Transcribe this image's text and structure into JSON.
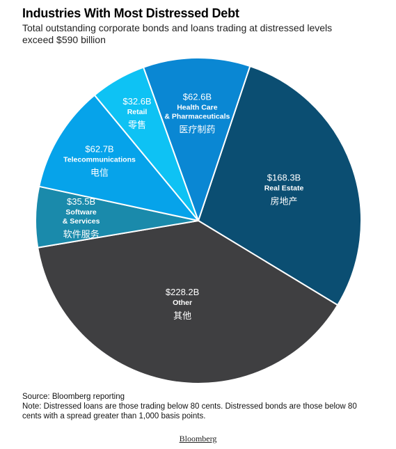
{
  "header": {
    "title": "Industries With Most Distressed Debt",
    "subtitle": "Total outstanding corporate bonds and loans trading at distressed levels exceed $590 billion"
  },
  "chart_data": {
    "type": "pie",
    "title": "Industries With Most Distressed Debt",
    "subtitle": "Total outstanding corporate bonds and loans trading at distressed levels exceed $590 billion",
    "unit": "USD billion",
    "slices": [
      {
        "label": "Real Estate",
        "label_zh": "房地产",
        "value": 168.3,
        "value_label": "$168.3B",
        "color": "#0b4e72",
        "text_color": "#ffffff"
      },
      {
        "label": "Other",
        "label_zh": "其他",
        "value": 228.2,
        "value_label": "$228.2B",
        "color": "#3f3f41",
        "text_color": "#ffffff"
      },
      {
        "label": "Software & Services",
        "label_zh": "软件服务",
        "value": 35.5,
        "value_label": "$35.5B",
        "color": "#1a8aab",
        "text_color": "#ffffff"
      },
      {
        "label": "Telecommunications",
        "label_zh": "电信",
        "value": 62.7,
        "value_label": "$62.7B",
        "color": "#06a3ea",
        "text_color": "#ffffff"
      },
      {
        "label": "Retail",
        "label_zh": "零售",
        "value": 32.6,
        "value_label": "$32.6B",
        "color": "#0ec2f4",
        "text_color": "#ffffff"
      },
      {
        "label": "Health Care & Pharmaceuticals",
        "label_zh": "医疗制药",
        "value": 62.6,
        "value_label": "$62.6B",
        "color": "#0a87d3",
        "text_color": "#ffffff"
      }
    ]
  },
  "footer": {
    "source": "Source: Bloomberg reporting",
    "note": "Note: Distressed loans are those trading below 80 cents. Distressed bonds are those below 80 cents with a spread greater than 1,000 basis points.",
    "brand": "Bloomberg"
  }
}
